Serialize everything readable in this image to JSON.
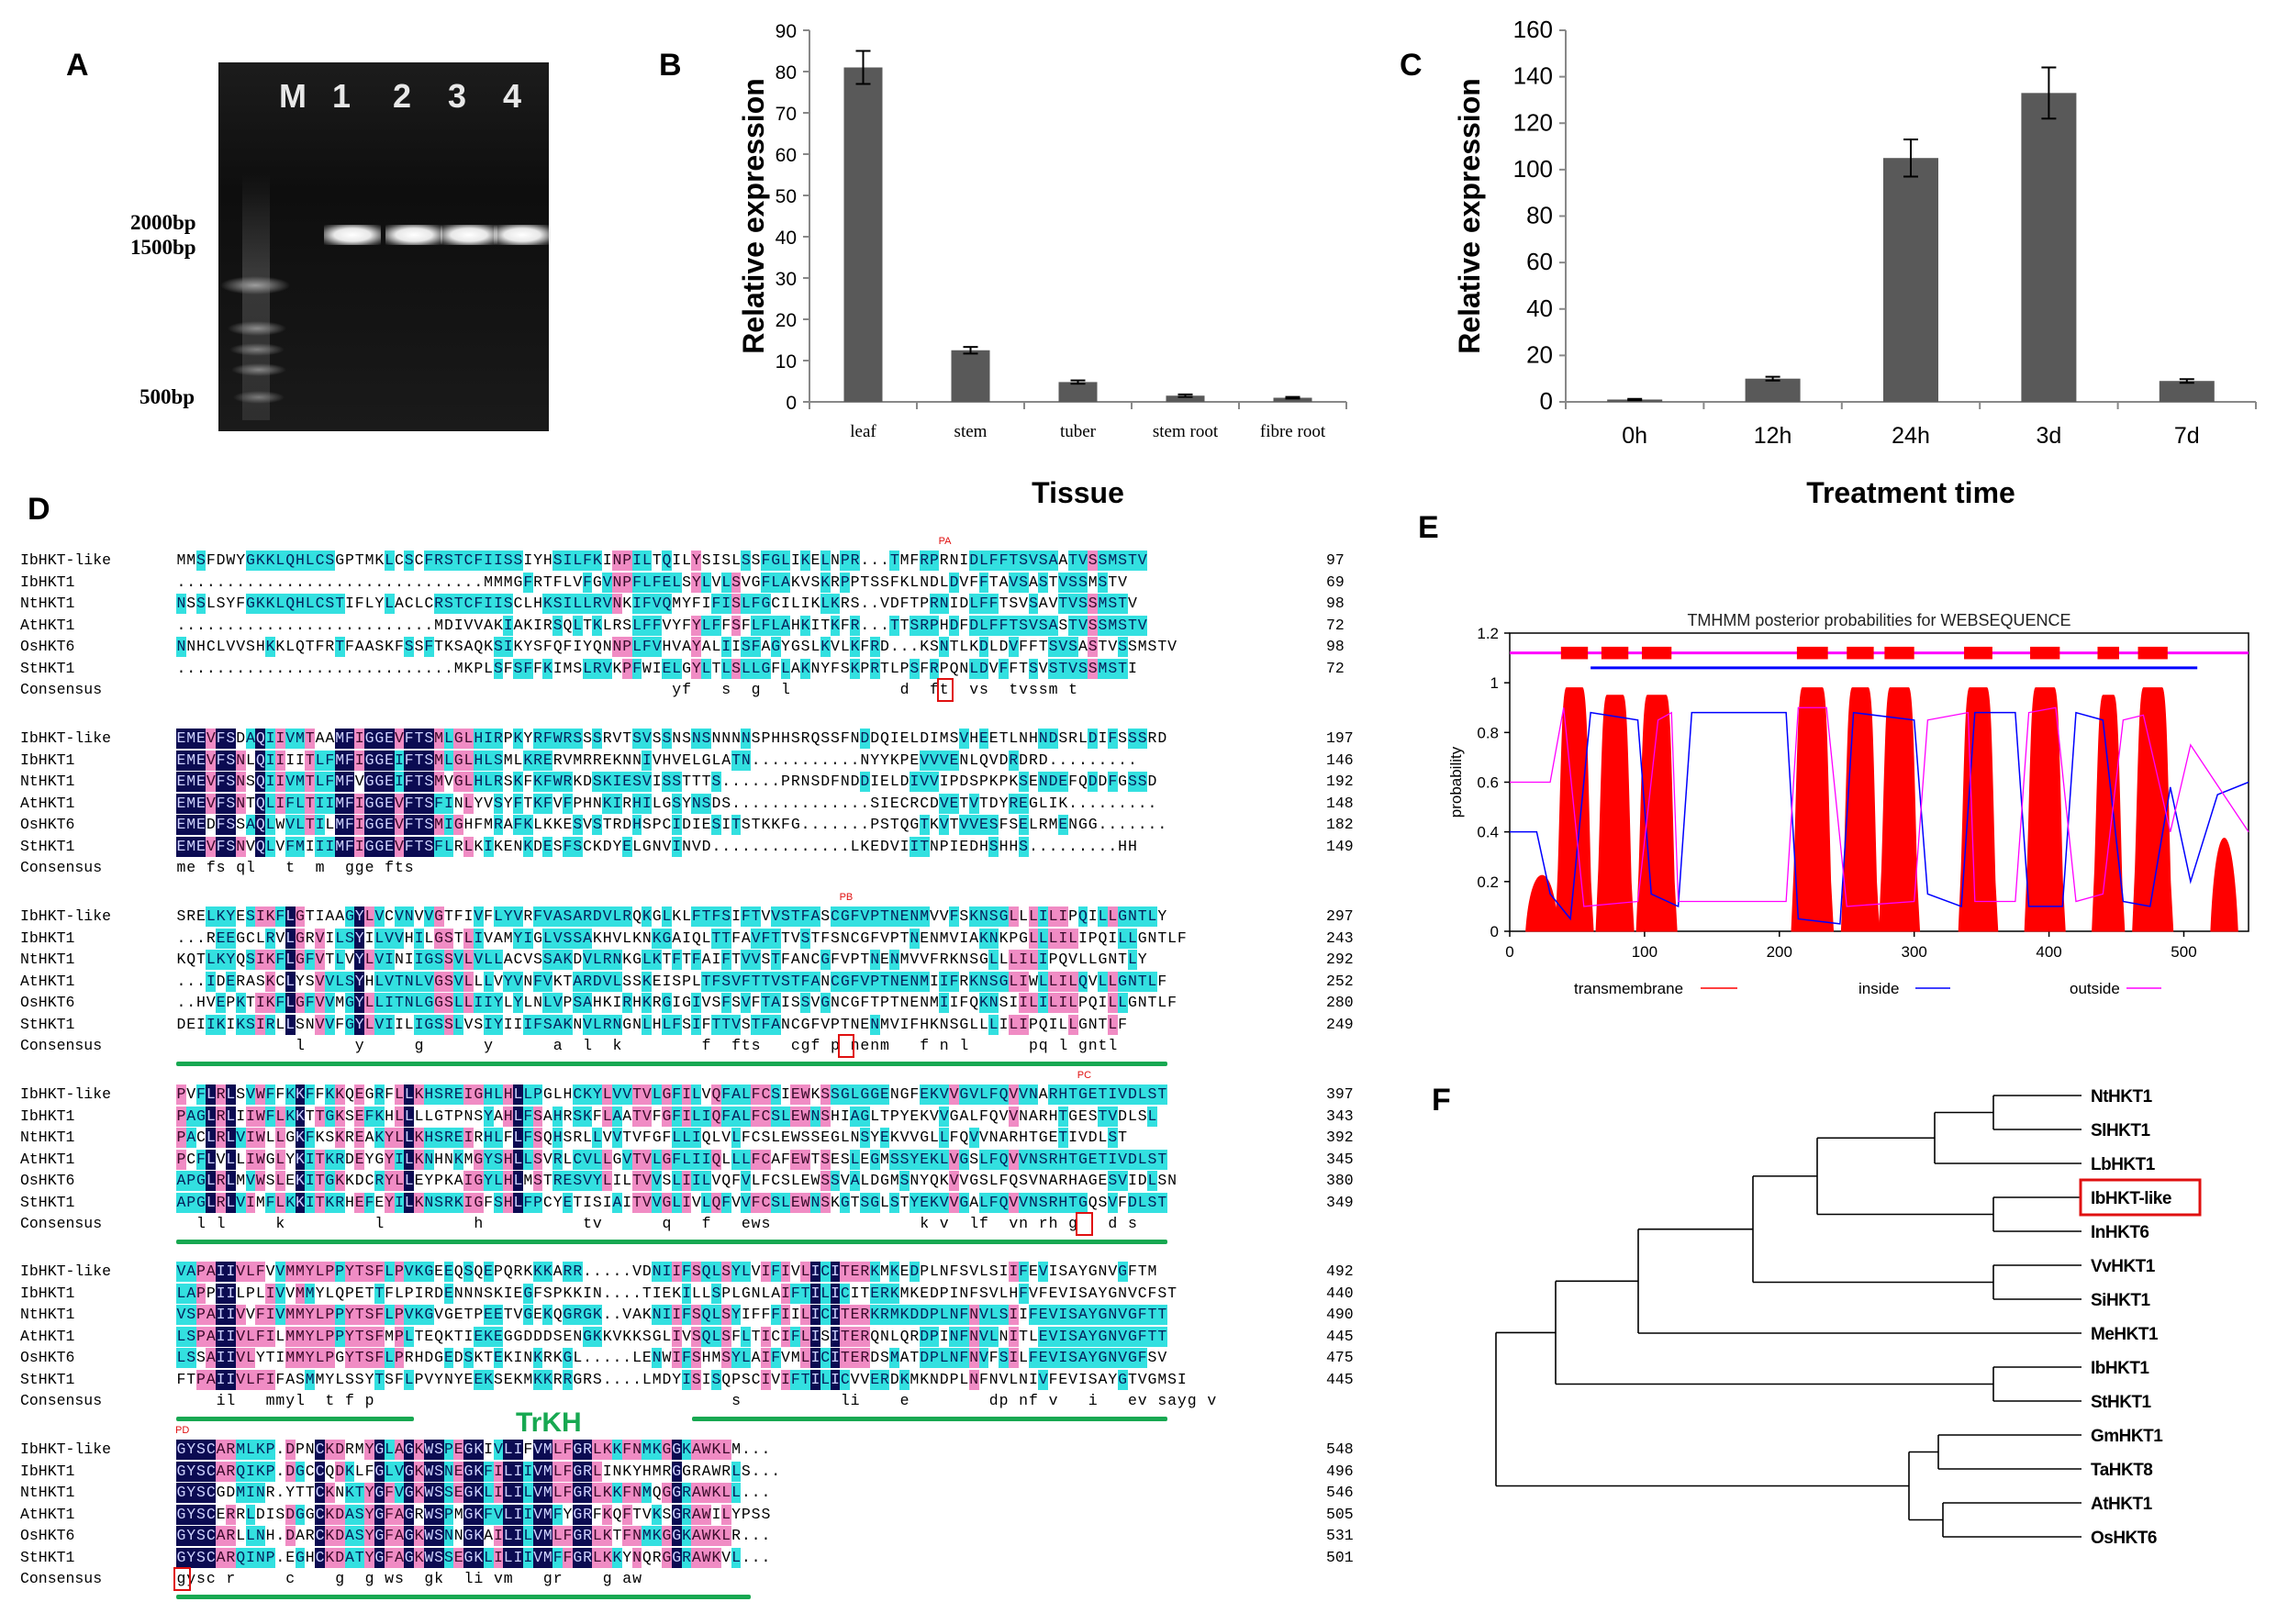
{
  "panel_labels": {
    "a": "A",
    "b": "B",
    "c": "C",
    "d": "D",
    "e": "E",
    "f": "F"
  },
  "gel": {
    "lane_labels": [
      "M",
      "1",
      "2",
      "3",
      "4"
    ],
    "size_markers": [
      "2000bp",
      "1500bp",
      "500bp"
    ]
  },
  "chart_data": [
    {
      "type": "bar",
      "panel": "B",
      "title": "",
      "categories": [
        "leaf",
        "stem",
        "tuber",
        "stem root",
        "fibre root"
      ],
      "values": [
        81,
        12.5,
        4.8,
        1.5,
        1.0
      ],
      "errors": [
        4,
        0.8,
        0.4,
        0.3,
        0.2
      ],
      "xlabel": "Tissue",
      "ylabel": "Relative expression",
      "ylim": [
        0,
        90
      ],
      "yticks": [
        "0",
        "10",
        "20",
        "30",
        "40",
        "50",
        "60",
        "70",
        "80",
        "90"
      ],
      "bar_color": "#595959"
    },
    {
      "type": "bar",
      "panel": "C",
      "title": "",
      "categories": [
        "0h",
        "12h",
        "24h",
        "3d",
        "7d"
      ],
      "values": [
        1,
        10,
        105,
        133,
        9
      ],
      "errors": [
        0.3,
        0.8,
        8,
        11,
        0.8
      ],
      "xlabel": "Treatment time",
      "ylabel": "Relative expression",
      "ylim": [
        0,
        160
      ],
      "yticks": [
        "0",
        "20",
        "40",
        "60",
        "80",
        "100",
        "120",
        "140",
        "160"
      ],
      "bar_color": "#595959"
    },
    {
      "type": "area",
      "panel": "E",
      "title": "TMHMM posterior probabilities for WEBSEQUENCE",
      "ylabel": "probability",
      "xlim": [
        0,
        548
      ],
      "ylim": [
        0,
        1.2
      ],
      "xticks": [
        "0",
        "100",
        "200",
        "300",
        "400",
        "500"
      ],
      "yticks": [
        "0",
        "0.2",
        "0.4",
        "0.6",
        "0.8",
        "1",
        "1.2"
      ],
      "legend": [
        "transmembrane",
        "inside",
        "outside"
      ],
      "legend_placement": "bottom",
      "transmembrane_segments": [
        [
          38,
          58
        ],
        [
          68,
          88
        ],
        [
          98,
          120
        ],
        [
          213,
          236
        ],
        [
          250,
          270
        ],
        [
          278,
          300
        ],
        [
          337,
          358
        ],
        [
          386,
          408
        ],
        [
          436,
          452
        ],
        [
          466,
          488
        ]
      ],
      "colors": {
        "transmembrane": "#ff0000",
        "inside": "#0000ff",
        "outside": "#ff00ff"
      }
    }
  ],
  "alignment": {
    "blocks": [
      {
        "rows": [
          {
            "name": "IbHKT-like",
            "seq": "MMSFDWYGKKLQHLCSGPTMKLCSCFRSTCFIISSIYHSILFKINPILTQILYSISLSSFGLIKELNPR...TMFRPRNIDLFFTSVSAATVSSMSTV",
            "num": "97"
          },
          {
            "name": "IbHKT1",
            "seq": "...............................MMMGFRTFLVFGVNPFLFELSYLVLSVGFLAKVSKRPPTSSFKLNDLDVFFTAVSASTVSSMSTV",
            "num": "69"
          },
          {
            "name": "NtHKT1",
            "seq": "NSSLSYFGKKLQHLCSTIFLYLACLCRSTCFIISCLHKSILLRVNKIFVQMYFIFISLFGCILIKLKRS..VDFTPRNIDLFFTSVSAVTVSSMSTV",
            "num": "98"
          },
          {
            "name": "AtHKT1",
            "seq": "..........................MDIVVAKIAKIRSQLTKLRSLFFVYFYLFFSFLFLAHKITKFR...TTSRPHDFDLFFTSVSASTVSSMSTV",
            "num": "72"
          },
          {
            "name": "OsHKT6",
            "seq": "NNHCLVVSHKKLQTFRTFAASKFSSFTKSAQKSIKYSFQFIYQNNPLFVHVAYALIISFAGYGSLKVLKFRD...KSNTLKDLDVFFTSVSASTVSSMSTV",
            "num": "98"
          },
          {
            "name": "StHKT1",
            "seq": "............................MKPLSFSFFKIMSLRVKPFWIELGYLTLSLLGFLAKNYFSKPRTLPSFRPQNLDVFFTSVSTVSSMSTI",
            "num": "72"
          }
        ],
        "consensus": "                                                  yf   s  g  l           d  ft  vs  tvssm t"
      },
      {
        "rows": [
          {
            "name": "IbHKT-like",
            "seq": "EMEVFSDAQIIVMTAAMFIGGEVFTSMLGLHIRPKYRFWRSSSRVTSVSSNSNSNNNNSPHHSRQSSFNDDQIELDIMSVHEETLNHNDSRLDIFSSSRD",
            "num": "197"
          },
          {
            "name": "IbHKT1",
            "seq": "EMEVFSNLQIIIITLFMFIGGEIFTSMLGLHLSMLKRERVMRREKNNIVHVELGLATN...........NYYKPEVVVENLQVDRDRD.........",
            "num": "146"
          },
          {
            "name": "NtHKT1",
            "seq": "EMEVFSNSQIIVMTLFMFVGGEIFTSMVGLHLRSKFKFWRKDSKIESVISSTTTS......PRNSDFNDDIELDIVVIPDSPKPKSENDEFQDDFGSSD",
            "num": "192"
          },
          {
            "name": "AtHKT1",
            "seq": "EMEVFSNTQLIFLTIIMFIGGEVFTSFINLYVSYFTKFVFPHNKIRHILGSYNSDS..............SIECRCDVETVTDYREGLIK.........",
            "num": "148"
          },
          {
            "name": "OsHKT6",
            "seq": "EMEDFSSAQLWVLTILMFIGGEVFTSMIGHFMRAFKLKKESVSTRDHSPCIDIESITSTKKFG.......PSTQGTKVTVVESFSELRMENGG.......",
            "num": "182"
          },
          {
            "name": "StHKT1",
            "seq": "EMEVFSNVQLVFMIIIMFIGGEVFTSFLRLKIKENKDESFSCKDYELGNVINVD..............LKEDVIITNPIEDHSHHS.........HH",
            "num": "149"
          }
        ],
        "consensus": "me fs ql   t  m  gge fts"
      },
      {
        "rows": [
          {
            "name": "IbHKT-like",
            "seq": "SRELKYESIKFLGTIAAGYLVCVNVVGTFIVFLYVRFVASARDVLRQKGLKLFTFSIFTVVSTFASCGFVPTNENMVVFSKNSGLLLILIPQILLGNTLY",
            "num": "297"
          },
          {
            "name": "IbHKT1",
            "seq": "...REEGCLRVLGRVILSYILVVHILGSTLIVAMYIGLVSSAKHVLKNKGAIQLTTFAVFTTVSTFSNCGFVPTNENMVIAKNKPGLLLILIPQILLGNTLF",
            "num": "243"
          },
          {
            "name": "NtHKT1",
            "seq": "KQTLKYQSIKFLGFVTLVYLVINIIGSSVLVLLACVSSAKDVLRNKGLKTFTFAIFTVVSTFANCGFVPTNENMVVFRKNSGLLLILIPQVLLGNTLY",
            "num": "292"
          },
          {
            "name": "AtHKT1",
            "seq": "...IDERASKCLYSVVLSYHLVTNLVGSVLLLVYVNFVKTARDVLSSKEISPLTFSVFTTVSTFANCGFVPTNENMIIFRKNSGLIWLLILQVLLGNTLF",
            "num": "252"
          },
          {
            "name": "OsHKT6",
            "seq": "..HVEPKTIKFLGFVVMGYLLITNLGGSLLIIYLYLNLVPSAHKIRHKRGIGIVSFSVFTAISSVGNCGFTPTNENMIIFQKNSIILILILPQILLGNTLF",
            "num": "280"
          },
          {
            "name": "StHKT1",
            "seq": "DEIIKIKSIRLLSNVVFGYLVIILIGSSLVSIYIIIFSAKNVLRNGNLHLFSIFTTVSTFANCGFVPTNENMVIFHKNSGLLLILIPQILLGNTLF",
            "num": "249"
          }
        ],
        "consensus": "            l     y     g      y      a  l  k        f  fts   cgf p nenm   f n l      pq l gntl"
      },
      {
        "rows": [
          {
            "name": "IbHKT-like",
            "seq": "PVFLRLSVWFFKKFFKKQEGRFLLKHSREIGHLHLLPGLHCKYLVVTVLGFILVQFALFCSIEWKSSGLGGENGFEKVVGVLFQVVNARHTGETIVDLST",
            "num": "397"
          },
          {
            "name": "IbHKT1",
            "seq": "PAGLRLIIWFLKKTTGKSEFKHLLLLGTPNSYAHLFSAHRSKFLAATVFGFILIQFALFCSLEWNSHIAGLTPYEKVVGALFQVVNARHTGESTVDLSL",
            "num": "343"
          },
          {
            "name": "NtHKT1",
            "seq": "PACLRLVIWLLGKFKSKREAKYLLKHSREIRHLFLFSQHSRLLVVTVFGFLLIQLVLFCSLEWSSEGLNSYEKVVGLLFQVVNARHTGETIVDLST",
            "num": "392"
          },
          {
            "name": "AtHKT1",
            "seq": "PCFLVLLIWGLYKITKRDEYGYILKNHNKMGYSHLLSVRLCVLLGVTVLGFLIIQLLLFCAFEWTSESLEGMSSYEKLVGSLFQVVNSRHTGETIVDLST",
            "num": "345"
          },
          {
            "name": "OsHKT6",
            "seq": "APGLRLMVWSLEKITGKKDCRYLLEYPKAIGYLHLMSTRESVYLILTVVSLIILVQFVLFCSLEWSSVALDGMSNYQKVVGSLFQSVNARHAGESVIDLSN",
            "num": "380"
          },
          {
            "name": "StHKT1",
            "seq": "APGLRLVIMFLKKITKRHEFEYILKNSRKIGFSHLFPCYETISIAITVVGLIVLQFVVFCSLEWNSKGTSGLSTYEKVVGALFQVVNSRHTGQSVFDLST",
            "num": "349"
          }
        ],
        "consensus": "  l l     k         l         h          tv      q   f   ews               k v  lf  vn rh g   d s"
      },
      {
        "rows": [
          {
            "name": "IbHKT-like",
            "seq": "VAPAIIVLFVVMMYLPPYTSFLPVKGEEQSQEPQRKKKARR.....VDNIIFSQLSYLVIFIVLICITERKMKEDPLNFSVLSIIFEVISAYGNVGFTM",
            "num": "492"
          },
          {
            "name": "IbHKT1",
            "seq": "LAPPIILPLIVVMMYLQPETTFLPIRDENNNSKIEGFSPKKIN....TIEKILLSPLGNLAIFTILICITERKMKEDPINFSVLHFVFEVISAYGNVCFST",
            "num": "440"
          },
          {
            "name": "NtHKT1",
            "seq": "VSPAIIVVFIVMMYLPPYTSFLPVKGVGETPEETVGEKQGRGK..VAKNIIFSQLSYIFFFIILICITERKRMKDDPLNFNVLSIIFEVISAYGNVGFTT",
            "num": "490"
          },
          {
            "name": "AtHKT1",
            "seq": "LSPAIIVLFILMMYLPPYTSFMPLTEQKTIEKEGGDDDSENGKKVKKSGLIVSQLSFLTICIFLISITERQNLQRDPINFNVLNITLEVISAYGNVGFTT",
            "num": "445"
          },
          {
            "name": "OsHKT6",
            "seq": "LSSAIIVLYTIMMYLPGYTSFLPRHDGEDSKTEKINKRKGL.....LENWIFSHMSYLAIFVMLICITERDSMATDPLNFNVFSILFEVISAYGNVGFSV",
            "num": "475"
          },
          {
            "name": "StHKT1",
            "seq": "FTPAIIVLFIFASMMYLSSYTSFLPVYNYEEKSEKMKKRRGRS....LMDYISISQPSCIVIFTILICVVERDKMKNDPLNFNVLNIVFEVISAYGTVGMSI",
            "num": "445"
          }
        ],
        "consensus": "    il   mmyl  t f p                                    s          li    e        dp nf v   i   ev sayg v"
      },
      {
        "rows": [
          {
            "name": "IbHKT-like",
            "seq": "GYSCARMLKP.DPNCKDRMYGLAGKWSPEGKIVLIFVMLFGRLKKFNMKGGKAWKLM...",
            "num": "548"
          },
          {
            "name": "IbHKT1",
            "seq": "GYSCARQIKP.DGCCQDKLFGLVGKWSNEGKFILIIVMLFGRLINKYHMRGGRAWRLS...",
            "num": "496"
          },
          {
            "name": "NtHKT1",
            "seq": "GYSCGDMINR.YTTCKNKTYGFVGKWSSEGKLILILVMLFGRLKKFNMQGGRAWKLL...",
            "num": "546"
          },
          {
            "name": "AtHKT1",
            "seq": "GYSCERRLDISDGGCKDASYGFAGRWSPMGKFVLIIVMFYGRFKQFTVKSGRAWILYPSS",
            "num": "505"
          },
          {
            "name": "OsHKT6",
            "seq": "GYSCARLLNH.DARCKDASYGFAGKWSNNGKAILILVMLFGRLKTFNMKGGKAWKLR...",
            "num": "531"
          },
          {
            "name": "StHKT1",
            "seq": "GYSCARQINP.EGHCKDATYGFAGKWSSEGKLILIIVMFFGRLKKYNQRGGRAWKVL...",
            "num": "501"
          }
        ],
        "consensus": "gysc r     c    g  g ws  gk  li vm   gr    g aw"
      }
    ],
    "consensus_label": "Consensus",
    "motif_labels": [
      "PA",
      "PB",
      "PC",
      "PD"
    ],
    "trkh_label": "TrKH"
  },
  "tree": {
    "leaves": [
      "NtHKT1",
      "SlHKT1",
      "LbHKT1",
      "IbHKT-like",
      "InHKT6",
      "VvHKT1",
      "SiHKT1",
      "MeHKT1",
      "IbHKT1",
      "StHKT1",
      "GmHKT1",
      "TaHKT8",
      "AtHKT1",
      "OsHKT6"
    ],
    "highlighted": "IbHKT-like",
    "highlight_color": "#e01010"
  }
}
